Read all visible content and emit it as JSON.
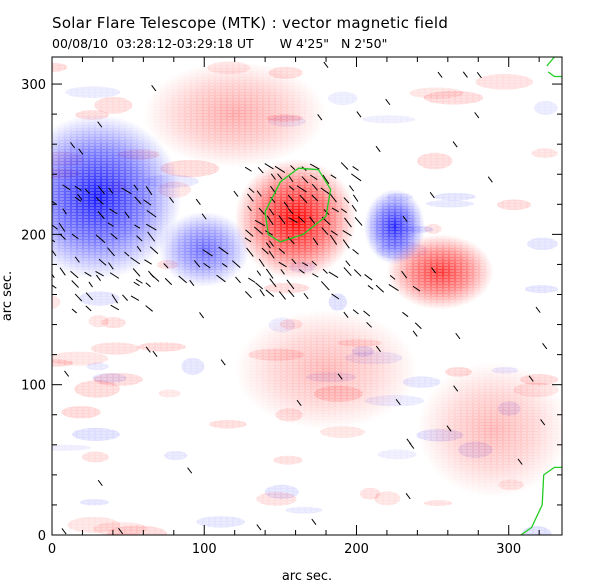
{
  "header": {
    "title": "Solar Flare Telescope (MTK) : vector magnetic field",
    "date": "00/08/10",
    "time_range": "03:28:12-03:29:18 UT",
    "position": "W 4'25\"   N 2'50\""
  },
  "chart_data": {
    "type": "heatmap",
    "title": "Solar Flare Telescope (MTK) : vector magnetic field",
    "xlabel": "arc sec.",
    "ylabel": "arc sec.",
    "xlim": [
      0,
      335
    ],
    "ylim": [
      0,
      318
    ],
    "x_ticks": [
      0,
      100,
      200,
      300
    ],
    "y_ticks": [
      0,
      100,
      200,
      300
    ],
    "x_tick_labels": [
      "0",
      "100",
      "200",
      "300"
    ],
    "y_tick_labels": [
      "0",
      "100",
      "200",
      "300"
    ],
    "colors": {
      "positive_polarity": "#ff0000",
      "negative_polarity": "#0000ff",
      "contour": "#22cc22",
      "background": "#ffffff"
    },
    "positive_regions": [
      {
        "name": "central-positive-core",
        "x": 160,
        "y": 210,
        "rx": 40,
        "ry": 40,
        "strength": 1.0
      },
      {
        "name": "east-positive-patch",
        "x": 255,
        "y": 175,
        "rx": 35,
        "ry": 25,
        "strength": 0.8
      },
      {
        "name": "upper-positive-lobe",
        "x": 120,
        "y": 280,
        "rx": 60,
        "ry": 35,
        "strength": 0.35
      },
      {
        "name": "southeast-positive",
        "x": 290,
        "y": 70,
        "rx": 50,
        "ry": 45,
        "strength": 0.3
      },
      {
        "name": "south-positive",
        "x": 180,
        "y": 110,
        "rx": 60,
        "ry": 40,
        "strength": 0.3
      }
    ],
    "negative_regions": [
      {
        "name": "west-negative-large",
        "x": 30,
        "y": 225,
        "rx": 55,
        "ry": 55,
        "strength": 0.9
      },
      {
        "name": "hook-negative",
        "x": 100,
        "y": 190,
        "rx": 30,
        "ry": 25,
        "strength": 0.6
      },
      {
        "name": "east-negative-island",
        "x": 225,
        "y": 205,
        "rx": 20,
        "ry": 25,
        "strength": 0.85
      }
    ],
    "contours": [
      {
        "name": "central-contour",
        "points": [
          [
            140,
            215
          ],
          [
            150,
            235
          ],
          [
            162,
            244
          ],
          [
            175,
            243
          ],
          [
            183,
            230
          ],
          [
            180,
            212
          ],
          [
            165,
            200
          ],
          [
            150,
            195
          ],
          [
            142,
            200
          ]
        ]
      },
      {
        "name": "northeast-corner-contour",
        "points": [
          [
            325,
            312
          ],
          [
            330,
            318
          ],
          [
            338,
            318
          ],
          [
            338,
            305
          ],
          [
            330,
            305
          ],
          [
            326,
            308
          ]
        ]
      },
      {
        "name": "southeast-corner-contour",
        "points": [
          [
            308,
            0
          ],
          [
            315,
            5
          ],
          [
            322,
            20
          ],
          [
            323,
            40
          ],
          [
            330,
            45
          ],
          [
            338,
            45
          ]
        ]
      }
    ],
    "transverse_field_regions": [
      {
        "x": [
          0,
          70
        ],
        "y": [
          150,
          230
        ],
        "spacing": 8
      },
      {
        "x": [
          130,
          200
        ],
        "y": [
          160,
          250
        ],
        "spacing": 7
      },
      {
        "x": [
          200,
          245
        ],
        "y": [
          140,
          175
        ],
        "spacing": 8
      },
      {
        "x": [
          40,
          140
        ],
        "y": [
          170,
          190
        ],
        "spacing": 9
      }
    ]
  }
}
